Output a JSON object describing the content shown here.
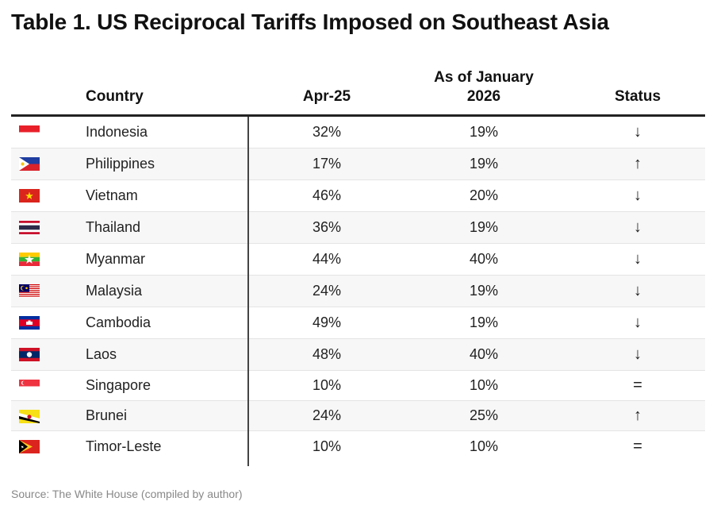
{
  "title": "Table 1. US Reciprocal Tariffs Imposed on Southeast Asia",
  "chart_data": {
    "type": "table",
    "columns": [
      "Country",
      "Apr-25",
      "As of January 2026",
      "Status"
    ],
    "header": {
      "country": "Country",
      "apr": "Apr-25",
      "jan_line1": "As of January",
      "jan_line2": "2026",
      "status": "Status"
    },
    "rows": [
      {
        "flag": "indonesia-flag",
        "country": "Indonesia",
        "apr": "32%",
        "jan": "19%",
        "status": "↓"
      },
      {
        "flag": "philippines-flag",
        "country": "Philippines",
        "apr": "17%",
        "jan": "19%",
        "status": "↑"
      },
      {
        "flag": "vietnam-flag",
        "country": "Vietnam",
        "apr": "46%",
        "jan": "20%",
        "status": "↓"
      },
      {
        "flag": "thailand-flag",
        "country": "Thailand",
        "apr": "36%",
        "jan": "19%",
        "status": "↓"
      },
      {
        "flag": "myanmar-flag",
        "country": "Myanmar",
        "apr": "44%",
        "jan": "40%",
        "status": "↓"
      },
      {
        "flag": "malaysia-flag",
        "country": "Malaysia",
        "apr": "24%",
        "jan": "19%",
        "status": "↓"
      },
      {
        "flag": "cambodia-flag",
        "country": "Cambodia",
        "apr": "49%",
        "jan": "19%",
        "status": "↓"
      },
      {
        "flag": "laos-flag",
        "country": "Laos",
        "apr": "48%",
        "jan": "40%",
        "status": "↓"
      },
      {
        "flag": "singapore-flag",
        "country": "Singapore",
        "apr": "10%",
        "jan": "10%",
        "status": "="
      },
      {
        "flag": "brunei-flag",
        "country": "Brunei",
        "apr": "24%",
        "jan": "25%",
        "status": "↑"
      },
      {
        "flag": "timor-leste-flag",
        "country": "Timor-Leste",
        "apr": "10%",
        "jan": "10%",
        "status": "="
      }
    ]
  },
  "source": "Source: The White House (compiled by author)"
}
